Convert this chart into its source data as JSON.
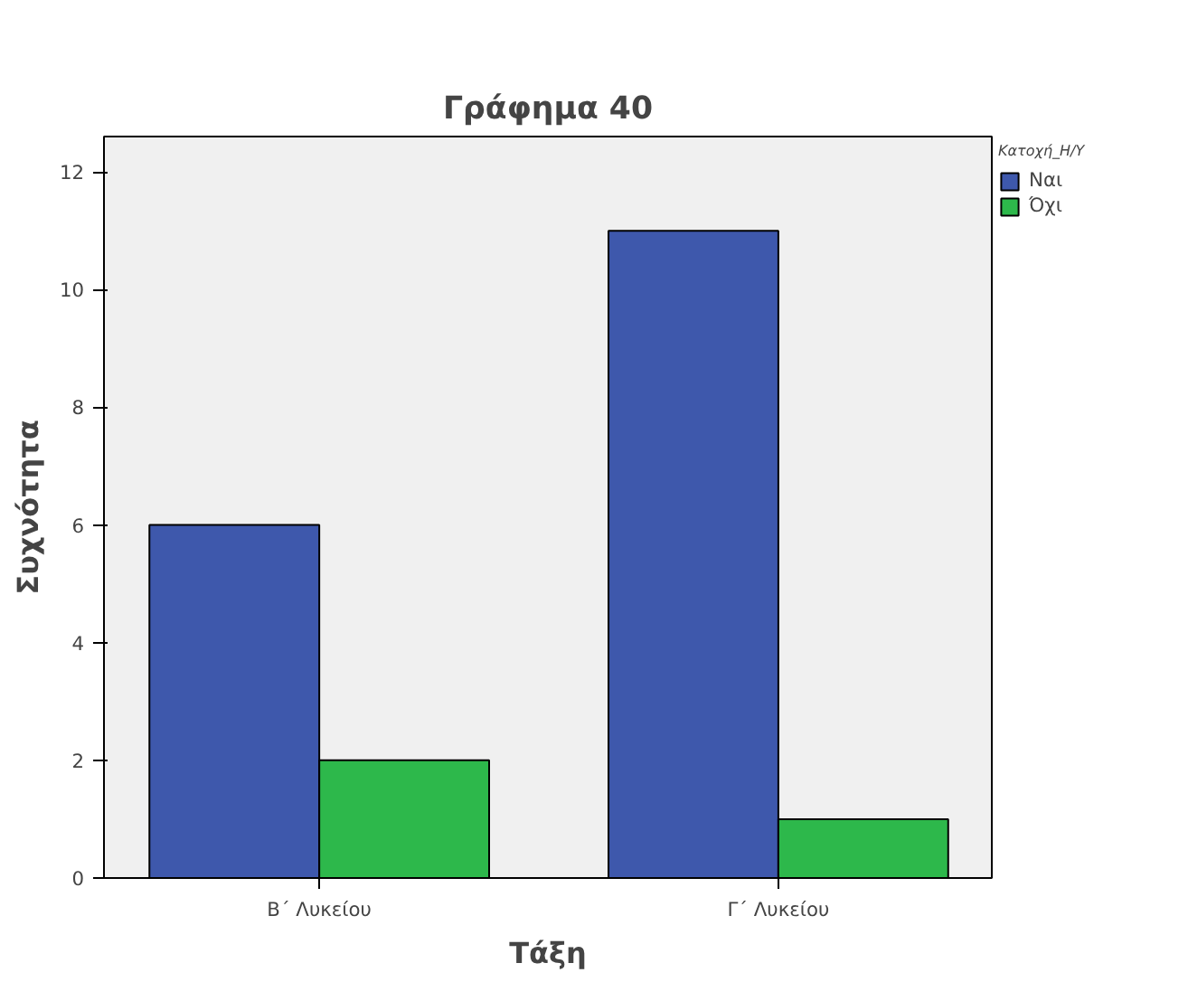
{
  "chart_data": {
    "type": "bar",
    "title": "Γράφημα 40",
    "xlabel": "Τάξη",
    "ylabel": "Συχνότητα",
    "legend_title": "Κατοχή_Η/Υ",
    "categories": [
      "Β΄ Λυκείου",
      "Γ΄ Λυκείου"
    ],
    "series": [
      {
        "name": "Ναι",
        "color": "#3e58ac",
        "values": [
          6,
          11
        ]
      },
      {
        "name": "Όχι",
        "color": "#2db84b",
        "values": [
          2,
          1
        ]
      }
    ],
    "ylim": [
      0,
      12.6
    ],
    "yticks": [
      0,
      2,
      4,
      6,
      8,
      10,
      12
    ],
    "grid": false,
    "legend": "top right"
  }
}
